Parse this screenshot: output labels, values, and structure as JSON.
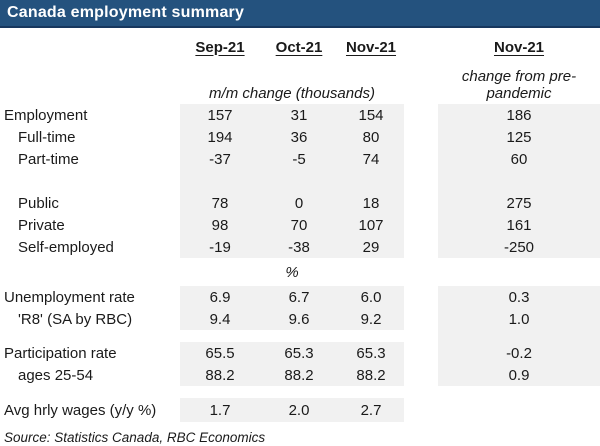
{
  "title": "Canada employment summary",
  "chart_data": {
    "type": "table",
    "title": "Canada employment summary",
    "columns": [
      "Sep-21",
      "Oct-21",
      "Nov-21",
      "Nov-21"
    ],
    "col_group_label": "m/m change (thousands)",
    "last_col_label": "change from pre-pandemic",
    "percent_section_label": "%",
    "rows": [
      {
        "label": "Employment",
        "values": [
          "157",
          "31",
          "154",
          "186"
        ]
      },
      {
        "label": "Full-time",
        "values": [
          "194",
          "36",
          "80",
          "125"
        ]
      },
      {
        "label": "Part-time",
        "values": [
          "-37",
          "-5",
          "74",
          "60"
        ]
      },
      {
        "label": "Public",
        "values": [
          "78",
          "0",
          "18",
          "275"
        ]
      },
      {
        "label": "Private",
        "values": [
          "98",
          "70",
          "107",
          "161"
        ]
      },
      {
        "label": "Self-employed",
        "values": [
          "-19",
          "-38",
          "29",
          "-250"
        ]
      },
      {
        "label": "Unemployment rate",
        "values": [
          "6.9",
          "6.7",
          "6.0",
          "0.3"
        ]
      },
      {
        "label": "'R8' (SA by RBC)",
        "values": [
          "9.4",
          "9.6",
          "9.2",
          "1.0"
        ]
      },
      {
        "label": "Participation rate",
        "values": [
          "65.5",
          "65.3",
          "65.3",
          "-0.2"
        ]
      },
      {
        "label": "ages 25-54",
        "values": [
          "88.2",
          "88.2",
          "88.2",
          "0.9"
        ]
      },
      {
        "label": "Avg hrly wages (y/y %)",
        "values": [
          "1.7",
          "2.0",
          "2.7",
          ""
        ]
      }
    ],
    "source": "Source:  Statistics Canada, RBC Economics"
  },
  "colors": {
    "header_bar": "#24527E",
    "header_bar_border": "#17375E",
    "shading": "#F1F1F1",
    "text": "#1A1A1A",
    "title_text": "#FFFFFF"
  }
}
